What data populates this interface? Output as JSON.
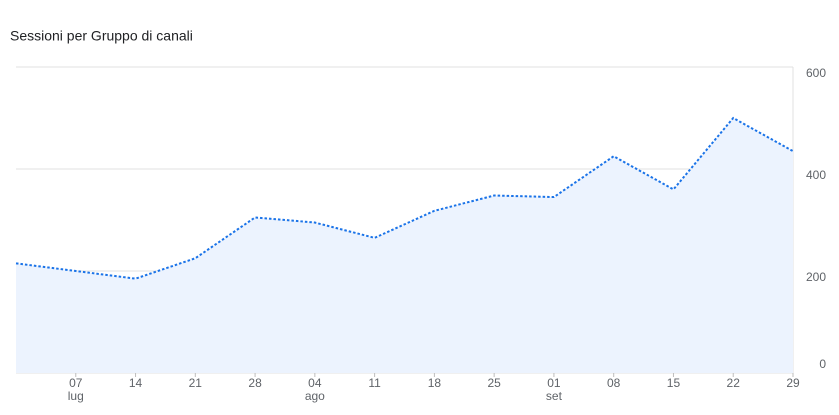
{
  "chart_data": {
    "type": "line",
    "title": "Sessioni per Gruppo di canali",
    "categories": [
      null,
      "07",
      "14",
      "21",
      "28",
      "04",
      "11",
      "18",
      "25",
      "01",
      "08",
      "15",
      "22",
      "29"
    ],
    "month_labels": [
      null,
      "lug",
      null,
      null,
      null,
      "ago",
      null,
      null,
      null,
      "set",
      null,
      null,
      null,
      null
    ],
    "series": [
      {
        "name": "Sessioni",
        "color": "#1a73e8",
        "values": [
          215,
          200,
          185,
          225,
          305,
          295,
          265,
          318,
          348,
          345,
          425,
          360,
          500,
          435
        ]
      }
    ],
    "ylim": [
      0,
      600
    ],
    "yticks": [
      0,
      200,
      400,
      600
    ],
    "grid": true,
    "area_color": "#ecf3fe"
  }
}
